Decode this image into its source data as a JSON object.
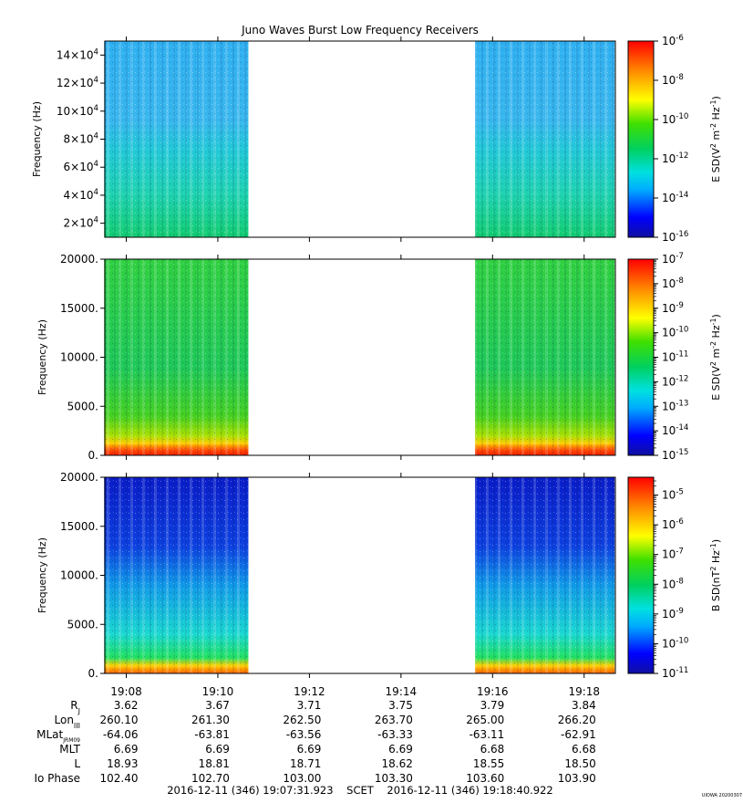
{
  "title": "Juno Waves Burst Low Frequency Receivers",
  "watermark": "UIOWA 20200307",
  "colors": {
    "background": "#ffffff",
    "axis": "#000000",
    "colormap": [
      "#1010a0",
      "#0000ff",
      "#00aaff",
      "#00e0e0",
      "#00d060",
      "#40e000",
      "#ffff00",
      "#ff9000",
      "#ff0000"
    ]
  },
  "time_axis": {
    "tick_labels": [
      "19:08",
      "19:10",
      "19:12",
      "19:14",
      "19:16",
      "19:18"
    ],
    "range_label": "2016-12-11 (346) 19:07:31.923    SCET    2016-12-11 (346) 19:18:40.922"
  },
  "ephemeris": {
    "rows": [
      {
        "label": "R",
        "sub": "J",
        "values": [
          "3.62",
          "3.67",
          "3.71",
          "3.75",
          "3.79",
          "3.84"
        ]
      },
      {
        "label": "Lon",
        "sub": "III",
        "values": [
          "260.10",
          "261.30",
          "262.50",
          "263.70",
          "265.00",
          "266.20"
        ]
      },
      {
        "label": "MLat",
        "sub": "JRM09",
        "values": [
          "-64.06",
          "-63.81",
          "-63.56",
          "-63.33",
          "-63.11",
          "-62.91"
        ]
      },
      {
        "label": "MLT",
        "sub": "",
        "values": [
          "6.69",
          "6.69",
          "6.69",
          "6.69",
          "6.68",
          "6.68"
        ]
      },
      {
        "label": "L",
        "sub": "",
        "values": [
          "18.93",
          "18.81",
          "18.71",
          "18.62",
          "18.55",
          "18.50"
        ]
      },
      {
        "label": "Io Phase",
        "sub": "",
        "values": [
          "102.40",
          "102.70",
          "103.00",
          "103.30",
          "103.60",
          "103.90"
        ]
      }
    ]
  },
  "chart_data": [
    {
      "type": "heatmap",
      "ylabel": "Frequency (Hz)",
      "ytick_labels": [
        {
          "m": "2",
          "e": "4"
        },
        {
          "m": "4",
          "e": "4"
        },
        {
          "m": "6",
          "e": "4"
        },
        {
          "m": "8",
          "e": "4"
        },
        {
          "m": "10",
          "e": "4"
        },
        {
          "m": "12",
          "e": "4"
        },
        {
          "m": "14",
          "e": "4"
        }
      ],
      "ytick_values": [
        20000,
        40000,
        60000,
        80000,
        100000,
        120000,
        140000
      ],
      "ylim": [
        10000,
        150000
      ],
      "data_segments": [
        [
          "19:07:31",
          "19:10:40"
        ],
        [
          "19:15:37",
          "19:18:40"
        ]
      ],
      "colorbar": {
        "label": "E SD",
        "label_parts": [
          "E SD(V",
          "2",
          " m",
          "-2",
          " Hz",
          "-1",
          ")"
        ],
        "tick_exponents": [
          "-6",
          "-8",
          "-10",
          "-12",
          "-14",
          "-16"
        ],
        "range_exponents": [
          -16,
          -6
        ],
        "minor_ticks": false
      }
    },
    {
      "type": "heatmap",
      "ylabel": "Frequency (Hz)",
      "ytick_labels": [
        "0.",
        "5000.",
        "10000.",
        "15000.",
        "20000."
      ],
      "ytick_values": [
        0,
        5000,
        10000,
        15000,
        20000
      ],
      "ylim": [
        0,
        20000
      ],
      "data_segments": [
        [
          "19:07:31",
          "19:10:40"
        ],
        [
          "19:15:37",
          "19:18:40"
        ]
      ],
      "colorbar": {
        "label": "E SD",
        "label_parts": [
          "E SD(V",
          "2",
          " m",
          "-2",
          " Hz",
          "-1",
          ")"
        ],
        "tick_exponents": [
          "-7",
          "-8",
          "-9",
          "-10",
          "-11",
          "-12",
          "-13",
          "-14",
          "-15"
        ],
        "range_exponents": [
          -15,
          -7
        ],
        "minor_ticks": true
      }
    },
    {
      "type": "heatmap",
      "ylabel": "Frequency (Hz)",
      "ytick_labels": [
        "0.",
        "5000.",
        "10000.",
        "15000.",
        "20000."
      ],
      "ytick_values": [
        0,
        5000,
        10000,
        15000,
        20000
      ],
      "ylim": [
        0,
        20000
      ],
      "data_segments": [
        [
          "19:07:31",
          "19:10:40"
        ],
        [
          "19:15:37",
          "19:18:40"
        ]
      ],
      "colorbar": {
        "label": "B SD",
        "label_parts": [
          "B SD(nT",
          "2",
          " Hz",
          "-1",
          ")"
        ],
        "tick_exponents": [
          "-5",
          "-6",
          "-7",
          "-8",
          "-9",
          "-10",
          "-11"
        ],
        "range_exponents": [
          -11,
          -4.4
        ],
        "minor_ticks": true
      }
    }
  ]
}
